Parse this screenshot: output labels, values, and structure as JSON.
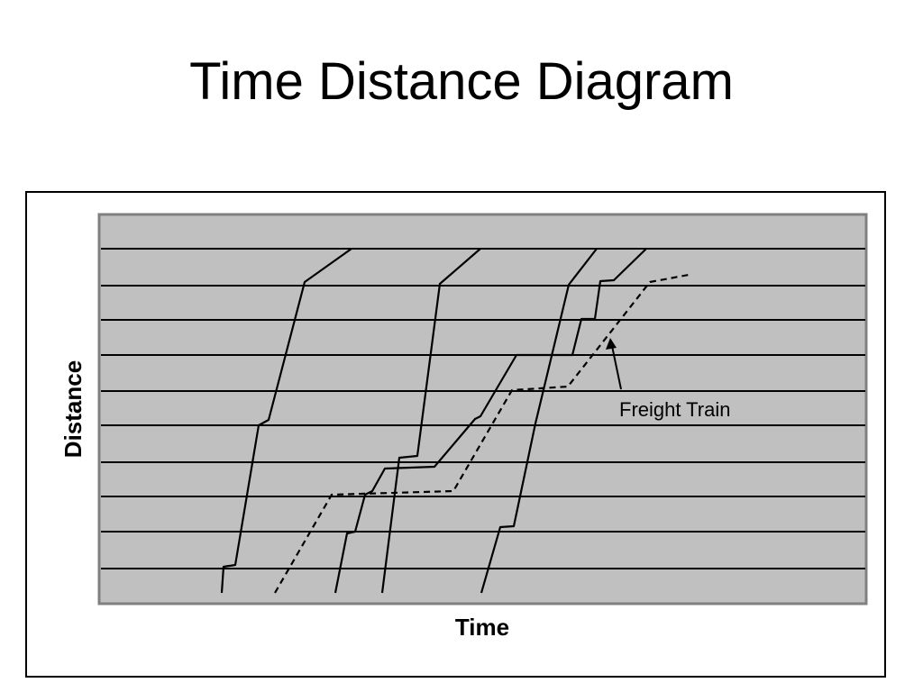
{
  "slide": {
    "title": "Time Distance Diagram"
  },
  "diagram": {
    "x_axis_label": "Time",
    "y_axis_label": "Distance",
    "annotation": "Freight Train",
    "colors": {
      "plot_background": "#c0c0c0",
      "lines": "#000000"
    }
  }
}
